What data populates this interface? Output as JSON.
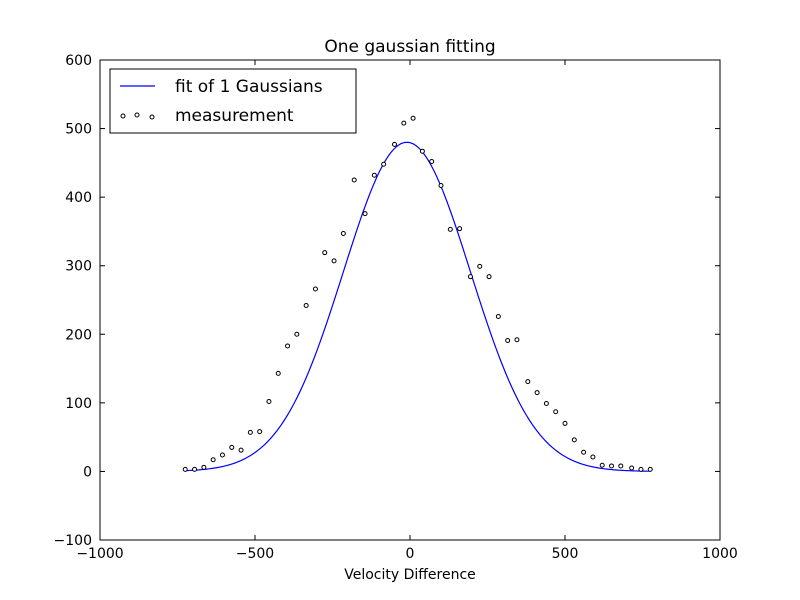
{
  "chart_data": {
    "type": "scatter",
    "title": "One gaussian fitting",
    "xlabel": "Velocity Difference",
    "ylabel": "",
    "xlim": [
      -1000,
      1000
    ],
    "ylim": [
      -100,
      600
    ],
    "x_ticks": [
      -1000,
      -500,
      0,
      500,
      1000
    ],
    "y_ticks": [
      -100,
      0,
      100,
      200,
      300,
      400,
      500,
      600
    ],
    "x_tick_labels": [
      "−1000",
      "−500",
      "0",
      "500",
      "1000"
    ],
    "y_tick_labels": [
      "−100",
      "0",
      "100",
      "200",
      "300",
      "400",
      "500",
      "600"
    ],
    "grid": false,
    "legend_position": "upper-left",
    "series": [
      {
        "name": "fit of 1 Gaussians",
        "kind": "line",
        "color": "#0000ff",
        "model": "gaussian",
        "amplitude": 480,
        "mean": -10,
        "sigma": 205,
        "x_range": [
          -725,
          775
        ]
      },
      {
        "name": "measurement",
        "kind": "scatter",
        "color": "#000000",
        "x": [
          -725,
          -695,
          -665,
          -635,
          -605,
          -575,
          -545,
          -515,
          -485,
          -455,
          -425,
          -395,
          -365,
          -335,
          -305,
          -275,
          -245,
          -215,
          -180,
          -145,
          -115,
          -85,
          -50,
          -20,
          10,
          40,
          70,
          100,
          130,
          160,
          195,
          225,
          255,
          285,
          315,
          345,
          380,
          410,
          440,
          470,
          500,
          530,
          560,
          590,
          620,
          650,
          680,
          715,
          745,
          775
        ],
        "y": [
          3,
          3,
          6,
          17,
          24,
          35,
          31,
          57,
          58,
          102,
          143,
          183,
          200,
          242,
          266,
          319,
          307,
          347,
          425,
          376,
          432,
          448,
          477,
          508,
          515,
          467,
          452,
          417,
          353,
          354,
          284,
          299,
          284,
          226,
          191,
          192,
          131,
          115,
          99,
          87,
          70,
          46,
          28,
          21,
          9,
          8,
          8,
          5,
          3,
          3
        ]
      }
    ]
  }
}
